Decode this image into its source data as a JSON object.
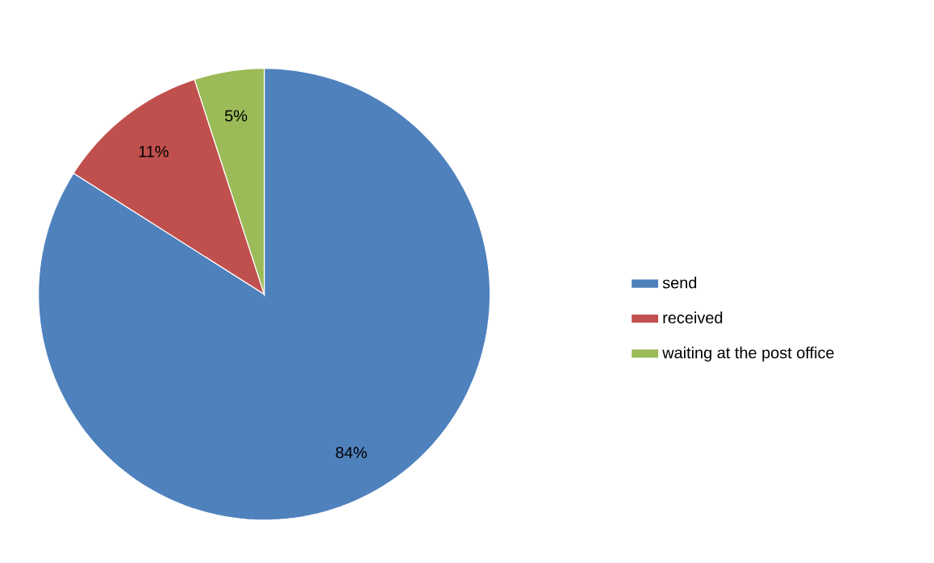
{
  "chart_data": {
    "type": "pie",
    "categories": [
      "send",
      "received",
      "waiting at the post office"
    ],
    "values": [
      84,
      11,
      5
    ],
    "colors": [
      "#4f81bd",
      "#c0504d",
      "#9bbb59"
    ],
    "value_labels": [
      "84%",
      "11%",
      "5%"
    ],
    "legend": "right"
  }
}
